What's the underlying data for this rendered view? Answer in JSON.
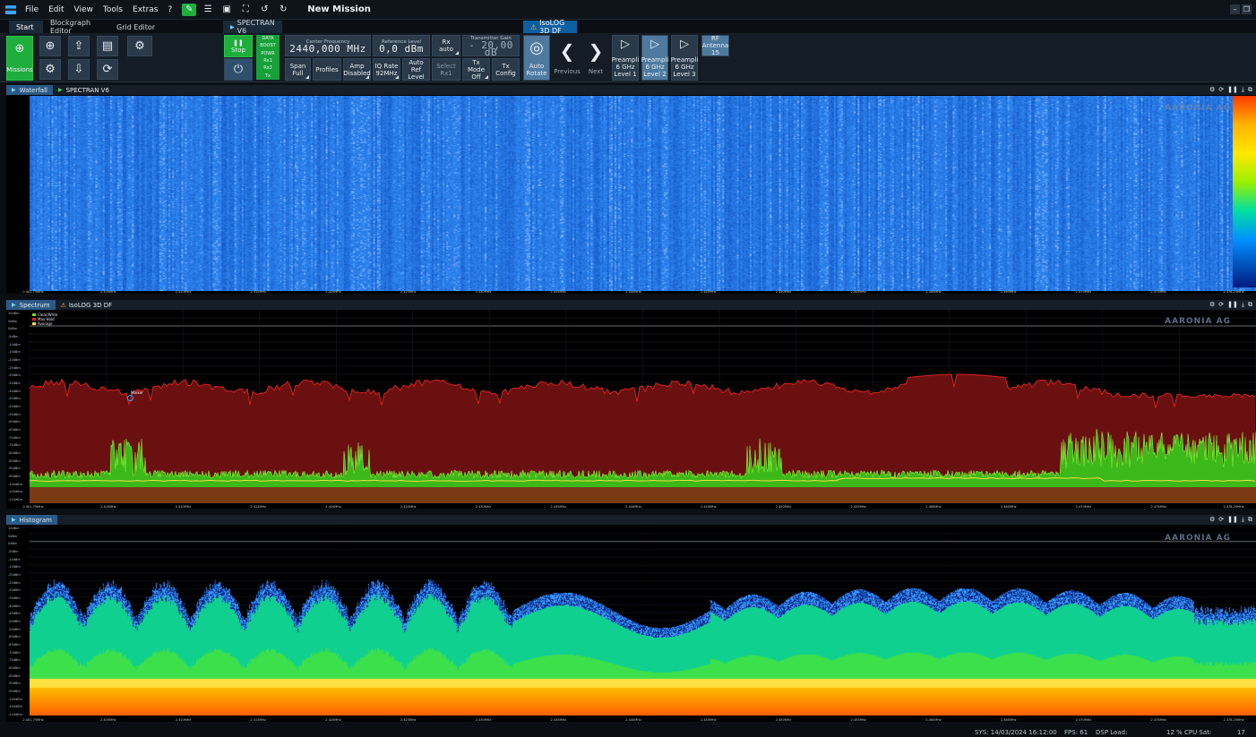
{
  "menubar": {
    "items": [
      "File",
      "Edit",
      "View",
      "Tools",
      "Extras",
      "?"
    ],
    "mission_title": "New Mission"
  },
  "tabs": {
    "start": "Start",
    "blockgraph": "Blockgraph Editor",
    "grid": "Grid Editor",
    "device": "SPECTRAN V6",
    "isolog": "IsoLOG 3D DF"
  },
  "ribbon": {
    "missions": "Missions",
    "stop": "Stop",
    "status": [
      "DATA",
      "BOOST",
      "POWR",
      "Rx1",
      "Rx2",
      "Tx"
    ],
    "center_freq_label": "Center Frequency",
    "center_freq_value": "2440,000 MHz",
    "ref_level_label": "Reference Level",
    "ref_level_value": "0,0 dBm",
    "rx_label": "Rx",
    "rx_value": "auto",
    "tx_gain_label": "Transmitter Gain",
    "tx_gain_value": "- 20,00 dB",
    "span_label": "Span",
    "span_value": "Full",
    "profiles": "Profiles",
    "amp_label": "Amp",
    "amp_value": "Disabled",
    "iq_rate_label": "IQ Rate",
    "iq_rate_value": "92MHz",
    "auto_ref_label": "Auto Ref",
    "auto_ref_value": "Level",
    "select_label": "Select",
    "select_value": "Rx1",
    "tx_mode_label": "Tx Mode",
    "tx_mode_value": "Off",
    "tx_config_label": "Tx",
    "tx_config_value": "Config",
    "auto_rotate_label": "Auto",
    "auto_rotate_value": "Rotate",
    "previous": "Previous",
    "next": "Next",
    "preamp_label": "Preampli",
    "preamp_sub": "6 GHz",
    "preamp1": "Level 1",
    "preamp2": "Level 2",
    "preamp3": "Level 3",
    "rf_antenna_label": "RF",
    "rf_antenna_value": "Antenna",
    "rf_antenna_num": "15"
  },
  "panels": {
    "waterfall": "Waterfall",
    "spectrum": "Spectrum",
    "histogram": "Histogram",
    "device": "SPECTRAN V6",
    "isolog": "IsoLOG 3D DF"
  },
  "watermark": "AARONIA AG",
  "xaxis_labels": [
    "2.401,75MHz",
    "2.405MHz",
    "2.410MHz",
    "2.415MHz",
    "2.420MHz",
    "2.425MHz",
    "2.430MHz",
    "2.435MHz",
    "2.440MHz",
    "2.445MHz",
    "2.450MHz",
    "2.455MHz",
    "2.460MHz",
    "2.465MHz",
    "2.470MHz",
    "2.475MHz",
    "2.478,25MHz"
  ],
  "spectrum_yaxis": [
    "10dBm",
    "5dBm",
    "0dBm",
    "-5dBm",
    "-10dBm",
    "-15dBm",
    "-20dBm",
    "-25dBm",
    "-30dBm",
    "-35dBm",
    "-40dBm",
    "-45dBm",
    "-50dBm",
    "-55dBm",
    "-60dBm",
    "-65dBm",
    "-70dBm",
    "-75dBm",
    "-80dBm",
    "-85dBm",
    "-90dBm",
    "-95dBm",
    "-100dBm",
    "-105dBm",
    "-110dBm"
  ],
  "legend": [
    "Clear/Write",
    "Max Hold",
    "Average"
  ],
  "marker_label": "Marker",
  "status": {
    "sys": "SYS: 14/03/2024 16:12:00",
    "fps": "FPS: 61",
    "dsp": "DSP Load:",
    "cpu_pct": "12 %",
    "cpu": "CPU Sat:",
    "cpu_val": "17"
  },
  "colors": {
    "accent": "#2c5a86",
    "green": "#1fae3c",
    "maxhold": "#e02020",
    "clearwrite": "#7bd71e",
    "average": "#f0e040"
  }
}
